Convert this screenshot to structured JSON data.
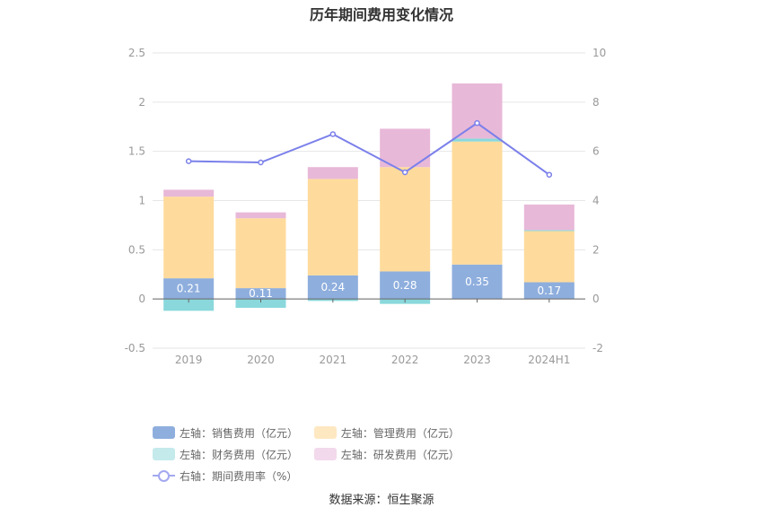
{
  "title": "历年期间费用变化情况",
  "source": "数据来源：恒生聚源",
  "chart_data": {
    "type": "bar",
    "stacked": true,
    "categories": [
      "2019",
      "2020",
      "2021",
      "2022",
      "2023",
      "2024H1"
    ],
    "left_axis": {
      "ylim": [
        -0.5,
        2.5
      ],
      "ticks": [
        "-0.5",
        "0",
        "0.5",
        "1",
        "1.5",
        "2",
        "2.5"
      ]
    },
    "right_axis": {
      "ylim": [
        -2,
        10
      ],
      "ticks": [
        "-2",
        "0",
        "2",
        "4",
        "6",
        "8",
        "10"
      ]
    },
    "grid": true,
    "legend_position": "bottom",
    "series": [
      {
        "name": "左轴：销售费用（亿元）",
        "axis": "left",
        "color": "#8eaedd",
        "values": [
          0.21,
          0.11,
          0.24,
          0.28,
          0.35,
          0.17
        ],
        "labels": [
          "0.21",
          "0.11",
          "0.24",
          "0.28",
          "0.35",
          "0.17"
        ]
      },
      {
        "name": "左轴：管理费用（亿元）",
        "axis": "left",
        "color": "#fedb9c",
        "values": [
          0.83,
          0.71,
          0.98,
          1.06,
          1.25,
          0.52
        ]
      },
      {
        "name": "左轴：财务费用（亿元）",
        "axis": "left",
        "color": "#8ad8dc",
        "values": [
          -0.12,
          -0.09,
          -0.02,
          -0.05,
          0.03,
          0.01
        ]
      },
      {
        "name": "左轴：研发费用（亿元）",
        "axis": "left",
        "color": "#e8b8d8",
        "values": [
          0.07,
          0.06,
          0.12,
          0.39,
          0.56,
          0.26
        ]
      },
      {
        "name": "右轴：期间费用率（%）",
        "axis": "right",
        "type": "line",
        "color": "#7b80ea",
        "values": [
          5.6,
          5.55,
          6.7,
          5.15,
          7.15,
          5.05
        ]
      }
    ]
  }
}
